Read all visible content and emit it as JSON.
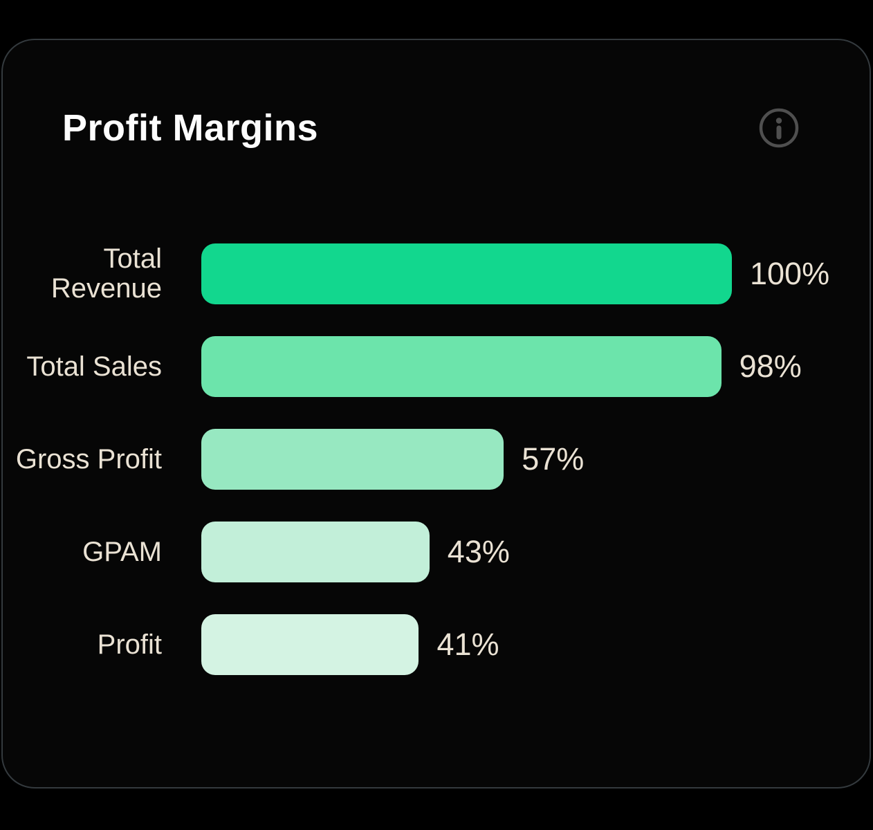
{
  "card": {
    "title": "Profit Margins"
  },
  "icons": {
    "info": "info-icon"
  },
  "chart_data": {
    "type": "bar",
    "orientation": "horizontal",
    "title": "Profit Margins",
    "categories": [
      "Total Revenue",
      "Total Sales",
      "Gross Profit",
      "GPAM",
      "Profit"
    ],
    "values": [
      100,
      98,
      57,
      43,
      41
    ],
    "value_labels": [
      "100%",
      "98%",
      "57%",
      "43%",
      "41%"
    ],
    "bar_colors": [
      "#12d78e",
      "#6ce4ab",
      "#97e8c1",
      "#c2efd9",
      "#d4f3e3"
    ],
    "xlim": [
      0,
      100
    ],
    "grid": false,
    "legend": false,
    "value_label_position": "end-of-bar",
    "category_label_position": "left"
  },
  "colors": {
    "page_background": "#000000",
    "card_background": "#060606",
    "card_border": "#343a3e",
    "title_text": "#fdfdfd",
    "label_text": "#eae2d4",
    "info_icon": "#4f4f4f"
  }
}
